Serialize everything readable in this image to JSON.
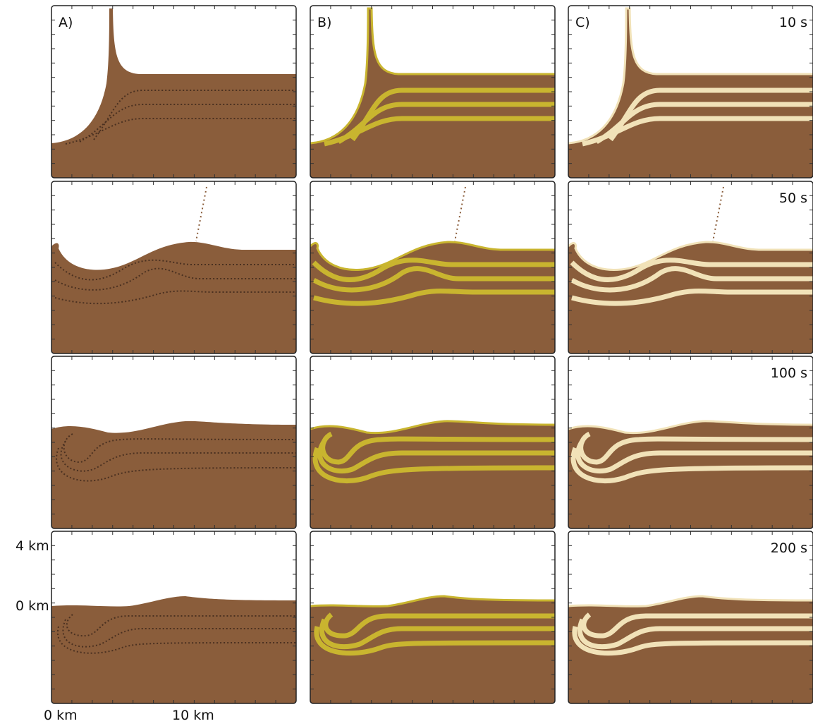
{
  "panels": {
    "labels": [
      "A)",
      "B)",
      "C)"
    ]
  },
  "times": [
    "10 s",
    "50 s",
    "100 s",
    "200 s"
  ],
  "axis": {
    "y_labels": [
      "4 km",
      "0 km"
    ],
    "x_labels": [
      "0 km",
      "10 km"
    ]
  }
}
